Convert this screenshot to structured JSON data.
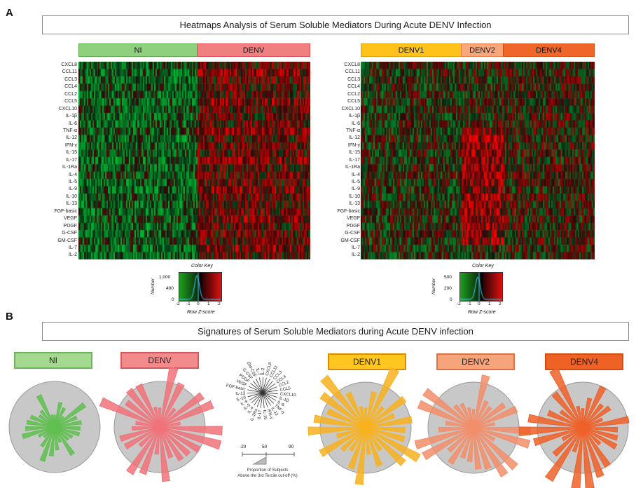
{
  "panel_a": {
    "letter": "A",
    "title": "Heatmaps Analysis of Serum Soluble Mediators During Acute DENV Infection",
    "left_groups": [
      {
        "label": "NI",
        "color": "#8fd07f",
        "border": "#5aa84a"
      },
      {
        "label": "DENV",
        "color": "#f07f80",
        "border": "#d94b50"
      }
    ],
    "right_groups": [
      {
        "label": "DENV1",
        "color": "#ffc21a",
        "border": "#e0a000"
      },
      {
        "label": "DENV2",
        "color": "#f7a77b",
        "border": "#e67b46"
      },
      {
        "label": "DENV4",
        "color": "#f0662a",
        "border": "#d24d12"
      }
    ],
    "rows": [
      "CXCL8",
      "CCL11",
      "CCL3",
      "CCL4",
      "CCL2",
      "CCL5",
      "CXCL10",
      "IL-1β",
      "IL-6",
      "TNF-α",
      "IL-12",
      "IFN-γ",
      "IL-15",
      "IL-17",
      "IL-1Ra",
      "IL-4",
      "IL-5",
      "IL-9",
      "IL-10",
      "IL-13",
      "FGF-basic",
      "VEGF",
      "PDGF",
      "G-CSF",
      "GM-CSF",
      "IL-7",
      "IL-2"
    ],
    "color_key_left": {
      "title": "Color Key",
      "ylabel": "Number",
      "xlabel": "Row Z-score",
      "yticks": [
        "1,000",
        "400",
        "0"
      ],
      "xticks": [
        "-2",
        "-1",
        "0",
        "1",
        "2"
      ]
    },
    "color_key_right": {
      "title": "Color Key",
      "ylabel": "Number",
      "xlabel": "Row Z-score",
      "yticks": [
        "500",
        "200",
        "0"
      ],
      "xticks": [
        "-2",
        "-1",
        "0",
        "1",
        "2"
      ]
    }
  },
  "panel_b": {
    "letter": "B",
    "title": "Signatures of Serum Soluble Mediators during Acute DENV infection",
    "groups": [
      {
        "label": "NI",
        "fill": "#a5d98f",
        "border": "#6cb55a",
        "bar": "#5fbf4f",
        "text": "#222"
      },
      {
        "label": "DENV",
        "fill": "#f28b8c",
        "border": "#d9555a",
        "bar": "#f0737a",
        "text": "#222"
      },
      {
        "label": "DENV1",
        "fill": "#ffc61f",
        "border": "#e08a00",
        "bar": "#f7b21e",
        "text": "#222"
      },
      {
        "label": "DENV2",
        "fill": "#f5a47c",
        "border": "#e0703f",
        "bar": "#f28e6a",
        "text": "#222"
      },
      {
        "label": "DENV4",
        "fill": "#ef6226",
        "border": "#d44a10",
        "bar": "#ee6028",
        "text": "#222"
      }
    ],
    "radial_legend": {
      "spokes": [
        "CXCL8",
        "CCL11",
        "CCL3",
        "CCL4",
        "CCL2",
        "CCL5",
        "CXCL10",
        "IL-1β",
        "IL-6",
        "TNF-α",
        "IL-12",
        "IFN-γ",
        "IL-15",
        "IL-17",
        "IL-1Ra",
        "IL-4",
        "IL-5",
        "IL-9",
        "IL-10",
        "IL-13",
        "FGF-basic",
        "VEGF",
        "PDGF",
        "G-CSF",
        "GM-CSF",
        "IL-7",
        "IL-2"
      ],
      "scale_ticks": [
        "-20",
        "50",
        "90"
      ],
      "scale_caption_1": "Proportion of Subjects",
      "scale_caption_2": "Above the 3rd Tercile cut-off (%)"
    }
  }
}
